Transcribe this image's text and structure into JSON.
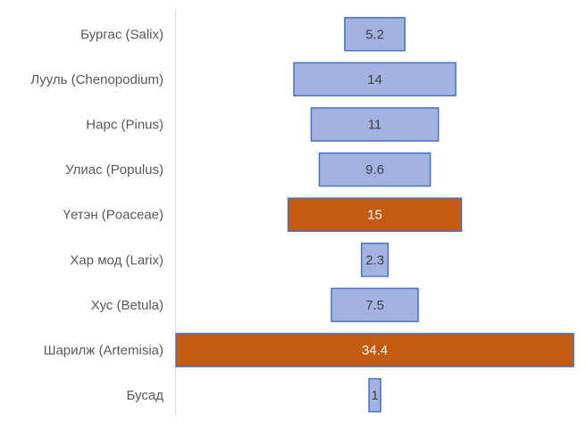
{
  "chart_data": {
    "type": "bar",
    "orientation": "horizontal",
    "style": "centered-funnel",
    "categories": [
      "Бургас (Salix)",
      "Лууль (Chenopodium)",
      "Нарс (Pinus)",
      "Улиас (Populus)",
      "Үетэн (Poaceae)",
      "Хар мод (Larix)",
      "Хус (Betula)",
      "Шарилж (Artemisia)",
      "Бусад"
    ],
    "values": [
      5.2,
      14,
      11,
      9.6,
      15,
      2.3,
      7.5,
      34.4,
      1
    ],
    "value_labels": [
      "5.2",
      "14",
      "11",
      "9.6",
      "15",
      "2.3",
      "7.5",
      "34.4",
      "1"
    ],
    "highlighted": [
      false,
      false,
      false,
      false,
      true,
      false,
      false,
      true,
      false
    ],
    "title": "",
    "xlabel": "",
    "ylabel": "",
    "xlim": [
      0,
      34.4
    ]
  },
  "colors": {
    "bar_fill": "#a3b2e0",
    "bar_stroke": "#4472c4",
    "highlight_fill": "#c55a11",
    "highlight_stroke": "#4472c4",
    "label_text": "#595959",
    "value_text_normal": "#404040",
    "value_text_highlight": "#ffffff",
    "axis_line": "#d9d9d9"
  }
}
